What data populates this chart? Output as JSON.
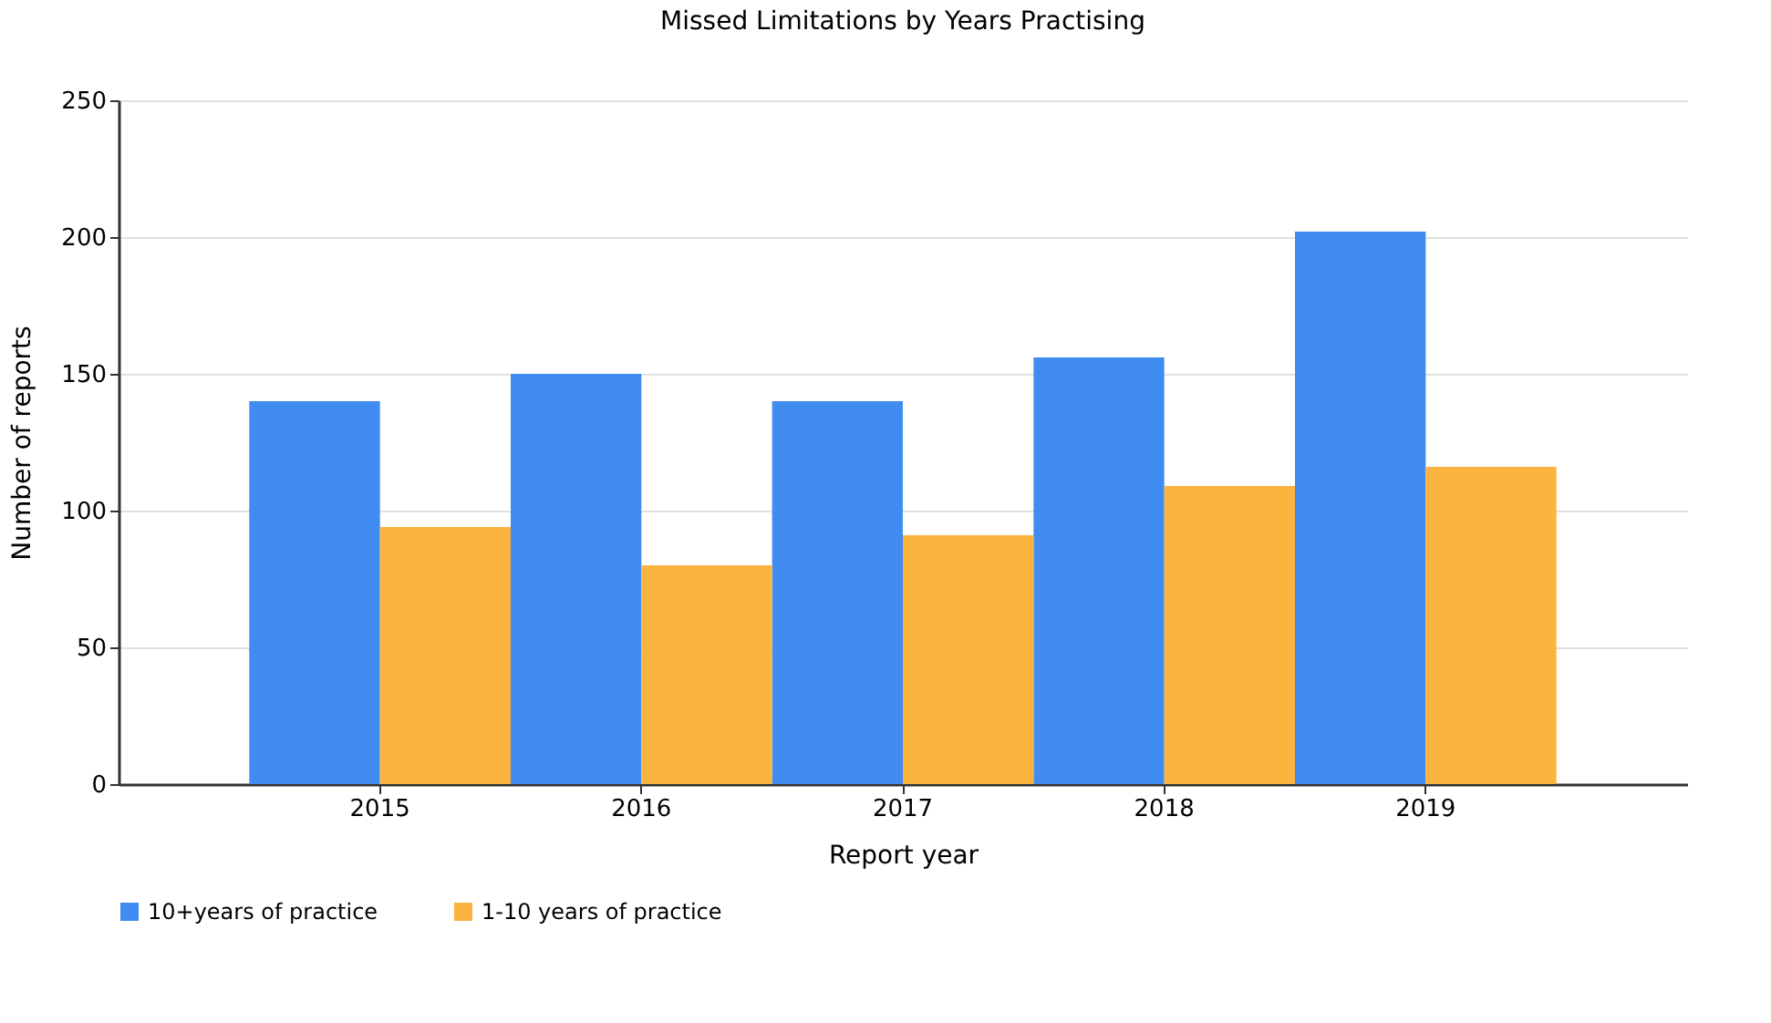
{
  "chart_data": {
    "type": "bar",
    "title": "Missed Limitations by Years Practising",
    "xlabel": "Report year",
    "ylabel": "Number of reports",
    "categories": [
      "2015",
      "2016",
      "2017",
      "2018",
      "2019"
    ],
    "series": [
      {
        "name": "10+years of practice",
        "color": "#418cf0",
        "values": [
          140,
          150,
          140,
          156,
          202
        ]
      },
      {
        "name": "1-10 years of practice",
        "color": "#fcb441",
        "values": [
          94,
          80,
          91,
          109,
          116
        ]
      }
    ],
    "ylim": [
      0,
      250
    ],
    "yticks": [
      0,
      50,
      100,
      150,
      200,
      250
    ],
    "grid": "y",
    "legend": "bottom"
  }
}
